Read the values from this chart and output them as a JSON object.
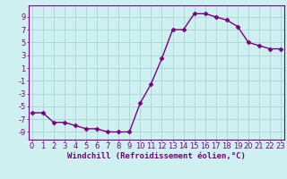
{
  "x": [
    0,
    1,
    2,
    3,
    4,
    5,
    6,
    7,
    8,
    9,
    10,
    11,
    12,
    13,
    14,
    15,
    16,
    17,
    18,
    19,
    20,
    21,
    22,
    23
  ],
  "y": [
    -6,
    -6,
    -7.5,
    -7.5,
    -8,
    -8.5,
    -8.5,
    -9,
    -9,
    -9,
    -4.5,
    -1.5,
    2.5,
    7,
    7,
    9.5,
    9.5,
    9,
    8.5,
    7.5,
    5,
    4.5,
    4,
    4
  ],
  "line_color": "#7b0080",
  "marker": "D",
  "marker_size": 2.5,
  "bg_color": "#cff0f0",
  "grid_color": "#aad4d4",
  "xlabel": "Windchill (Refroidissement éolien,°C)",
  "xlabel_fontsize": 6.5,
  "yticks": [
    -9,
    -7,
    -5,
    -3,
    -1,
    1,
    3,
    5,
    7,
    9
  ],
  "xticks": [
    0,
    1,
    2,
    3,
    4,
    5,
    6,
    7,
    8,
    9,
    10,
    11,
    12,
    13,
    14,
    15,
    16,
    17,
    18,
    19,
    20,
    21,
    22,
    23
  ],
  "ylim": [
    -10.2,
    10.8
  ],
  "xlim": [
    -0.3,
    23.3
  ],
  "tick_fontsize": 6.0,
  "tick_color": "#7b0080",
  "spine_color": "#7b0080",
  "linewidth": 1.0
}
